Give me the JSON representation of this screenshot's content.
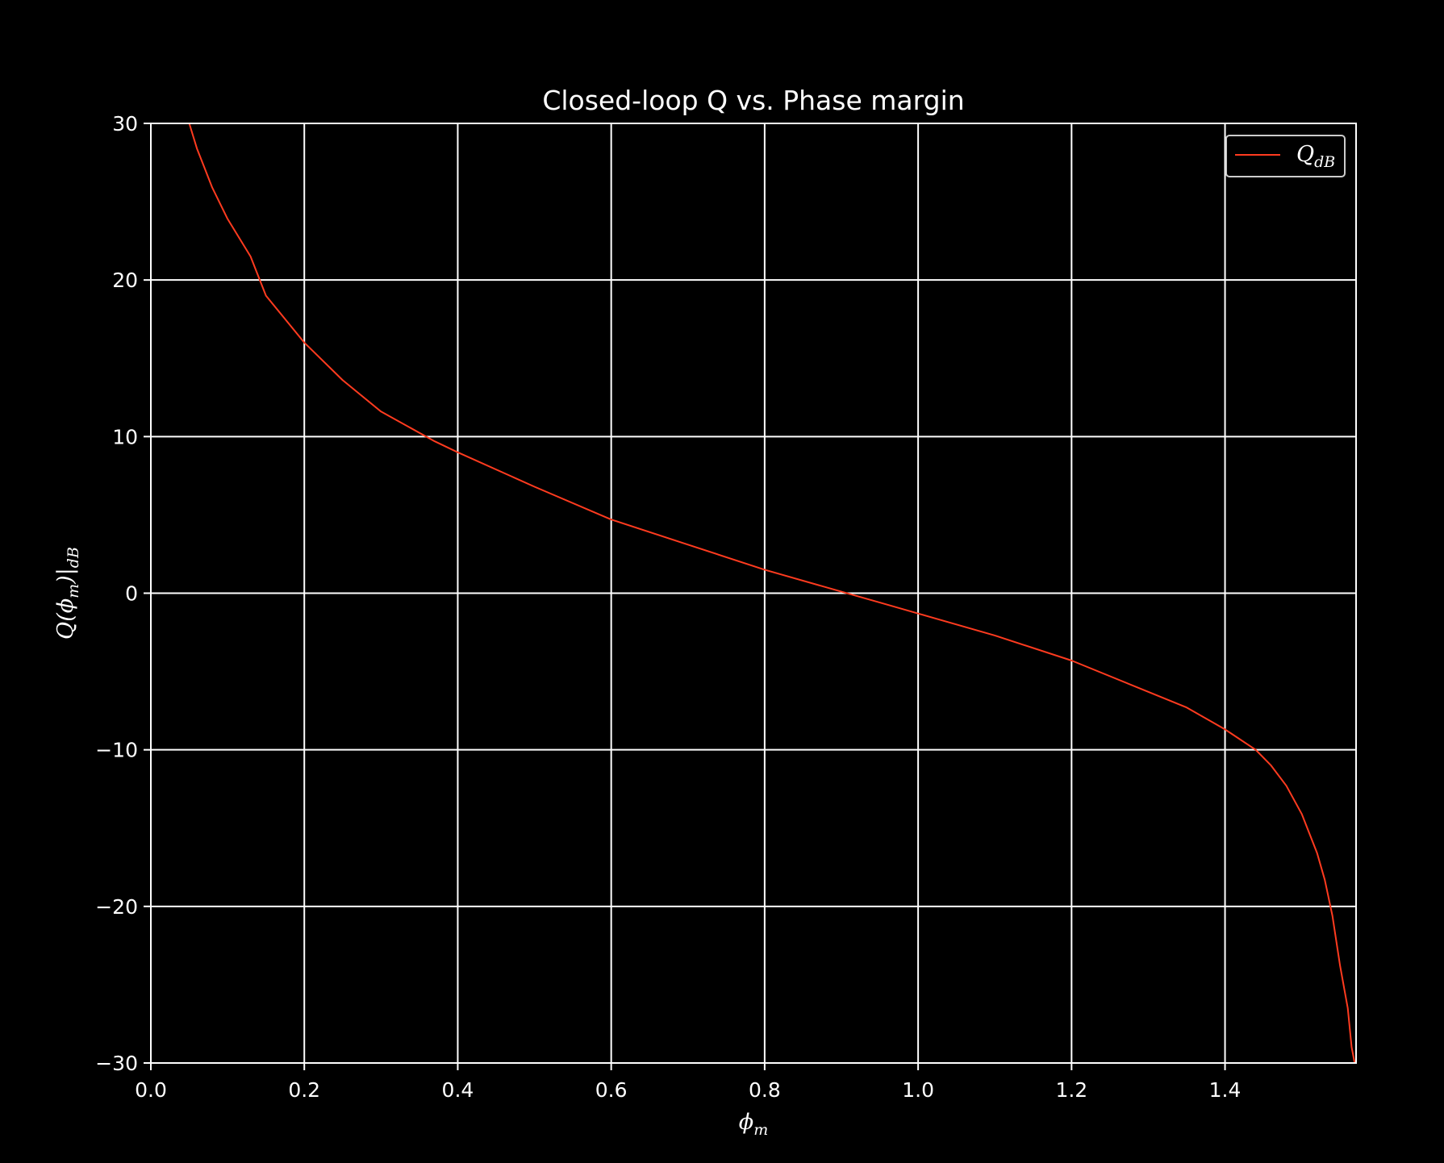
{
  "chart_data": {
    "type": "line",
    "title": "Closed-loop Q vs. Phase margin",
    "xlabel": {
      "base": "ϕ",
      "sub": "m"
    },
    "ylabel": {
      "text": "Q(ϕ",
      "sub": "m",
      "tail": ")|",
      "sub2": "dB"
    },
    "xlim": [
      0.0,
      1.5708
    ],
    "ylim": [
      -30,
      30
    ],
    "x_ticks": [
      0.0,
      0.2,
      0.4,
      0.6,
      0.8,
      1.0,
      1.2,
      1.4
    ],
    "x_tick_labels": [
      "0.0",
      "0.2",
      "0.4",
      "0.6",
      "0.8",
      "1.0",
      "1.2",
      "1.4"
    ],
    "y_ticks": [
      -30,
      -20,
      -10,
      0,
      10,
      20,
      30
    ],
    "y_tick_labels": [
      "−30",
      "−20",
      "−10",
      "0",
      "10",
      "20",
      "30"
    ],
    "grid": true,
    "legend_position": "top-right",
    "colors": {
      "background": "#000000",
      "foreground": "#ffffff",
      "series": "#ff3b1f"
    },
    "series": [
      {
        "name": {
          "base": "Q",
          "sub": "dB"
        },
        "x": [
          0.05,
          0.06,
          0.08,
          0.1,
          0.13,
          0.15,
          0.2,
          0.25,
          0.3,
          0.37,
          0.4,
          0.5,
          0.6,
          0.7,
          0.8,
          0.9,
          0.95,
          1.0,
          1.1,
          1.2,
          1.3,
          1.35,
          1.4,
          1.44,
          1.46,
          1.48,
          1.5,
          1.52,
          1.53,
          1.54,
          1.55,
          1.56,
          1.565,
          1.569
        ],
        "y": [
          30.0,
          28.4,
          25.9,
          23.9,
          21.5,
          19.0,
          16.0,
          13.6,
          11.6,
          9.7,
          9.0,
          6.8,
          4.7,
          3.1,
          1.5,
          0.1,
          -0.6,
          -1.3,
          -2.7,
          -4.3,
          -6.3,
          -7.3,
          -8.7,
          -10.0,
          -11.0,
          -12.3,
          -14.1,
          -16.6,
          -18.3,
          -20.6,
          -23.8,
          -26.5,
          -29.0,
          -30.0
        ]
      }
    ]
  }
}
